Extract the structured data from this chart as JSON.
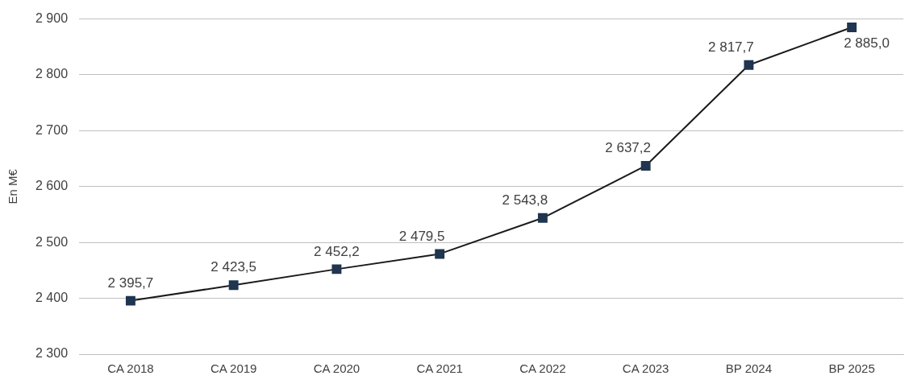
{
  "chart_data": {
    "type": "line",
    "ylabel": "En M€",
    "categories": [
      "CA 2018",
      "CA 2019",
      "CA 2020",
      "CA 2021",
      "CA 2022",
      "CA 2023",
      "BP 2024",
      "BP 2025"
    ],
    "series": [
      {
        "color": "#1f3550",
        "values": [
          2395.7,
          2423.5,
          2452.2,
          2479.5,
          2543.8,
          2637.2,
          2817.7,
          2885.0
        ],
        "value_labels": [
          "2 395,7",
          "2 423,5",
          "2 452,2",
          "2 479,5",
          "2 543,8",
          "2 637,2",
          "2 817,7",
          "2 885,0"
        ]
      }
    ],
    "ylim": [
      2300,
      2900
    ],
    "yticks": [
      {
        "value": 2300,
        "label": "2 300"
      },
      {
        "value": 2400,
        "label": "2 400"
      },
      {
        "value": 2500,
        "label": "2 500"
      },
      {
        "value": 2600,
        "label": "2 600"
      },
      {
        "value": 2700,
        "label": "2 700"
      },
      {
        "value": 2800,
        "label": "2 800"
      },
      {
        "value": 2900,
        "label": "2 900"
      }
    ],
    "grid": "y",
    "marker": "square",
    "line_style": "solid",
    "legend": false
  }
}
